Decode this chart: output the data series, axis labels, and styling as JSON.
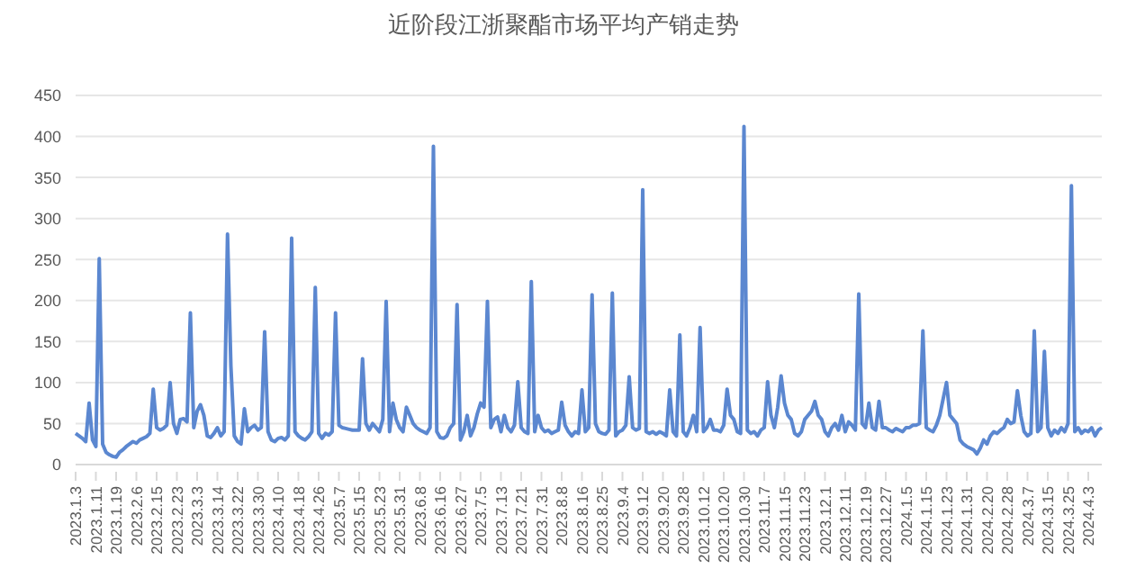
{
  "chart_data": {
    "type": "line",
    "title": "近阶段江浙聚酯市场平均产销走势",
    "categories": [
      "2023.1.3",
      null,
      null,
      null,
      null,
      null,
      "2023.1.11",
      null,
      null,
      null,
      null,
      null,
      "2023.1.19",
      null,
      null,
      null,
      null,
      null,
      "2023.2.6",
      null,
      null,
      null,
      null,
      null,
      "2023.2.15",
      null,
      null,
      null,
      null,
      null,
      "2023.2.23",
      null,
      null,
      null,
      null,
      null,
      "2023.3.3",
      null,
      null,
      null,
      null,
      null,
      "2023.3.14",
      null,
      null,
      null,
      null,
      null,
      "2023.3.22",
      null,
      null,
      null,
      null,
      null,
      "2023.3.30",
      null,
      null,
      null,
      null,
      null,
      "2023.4.10",
      null,
      null,
      null,
      null,
      null,
      "2023.4.18",
      null,
      null,
      null,
      null,
      null,
      "2023.4.26",
      null,
      null,
      null,
      null,
      null,
      "2023.5.7",
      null,
      null,
      null,
      null,
      null,
      "2023.5.15",
      null,
      null,
      null,
      null,
      null,
      "2023.5.23",
      null,
      null,
      null,
      null,
      null,
      "2023.5.31",
      null,
      null,
      null,
      null,
      null,
      "2023.6.8",
      null,
      null,
      null,
      null,
      null,
      "2023.6.16",
      null,
      null,
      null,
      null,
      null,
      "2023.6.27",
      null,
      null,
      null,
      null,
      null,
      "2023.7.5",
      null,
      null,
      null,
      null,
      null,
      "2023.7.13",
      null,
      null,
      null,
      null,
      null,
      "2023.7.21",
      null,
      null,
      null,
      null,
      null,
      "2023.7.31",
      null,
      null,
      null,
      null,
      null,
      "2023.8.8",
      null,
      null,
      null,
      null,
      null,
      "2023.8.16",
      null,
      null,
      null,
      null,
      null,
      "2023.8.25",
      null,
      null,
      null,
      null,
      null,
      "2023.9.4",
      null,
      null,
      null,
      null,
      null,
      "2023.9.12",
      null,
      null,
      null,
      null,
      null,
      "2023.9.20",
      null,
      null,
      null,
      null,
      null,
      "2023.9.28",
      null,
      null,
      null,
      null,
      null,
      "2023.10.12",
      null,
      null,
      null,
      null,
      null,
      "2023.10.20",
      null,
      null,
      null,
      null,
      null,
      "2023.10.30",
      null,
      null,
      null,
      null,
      null,
      "2023.11.7",
      null,
      null,
      null,
      null,
      null,
      "2023.11.15",
      null,
      null,
      null,
      null,
      null,
      "2023.11.23",
      null,
      null,
      null,
      null,
      null,
      "2023.12.1",
      null,
      null,
      null,
      null,
      null,
      "2023.12.11",
      null,
      null,
      null,
      null,
      null,
      "2023.12.19",
      null,
      null,
      null,
      null,
      null,
      "2023.12.27",
      null,
      null,
      null,
      null,
      null,
      "2024.1.5",
      null,
      null,
      null,
      null,
      null,
      "2024.1.15",
      null,
      null,
      null,
      null,
      null,
      "2024.1.23",
      null,
      null,
      null,
      null,
      null,
      "2024.1.31",
      null,
      null,
      null,
      null,
      null,
      "2024.2.20",
      null,
      null,
      null,
      null,
      null,
      "2024.2.28",
      null,
      null,
      null,
      null,
      null,
      "2024.3.7",
      null,
      null,
      null,
      null,
      null,
      "2024.3.15",
      null,
      null,
      null,
      null,
      null,
      "2024.3.25",
      null,
      null,
      null,
      null,
      null,
      "2024.4.3",
      null,
      null,
      null,
      null
    ],
    "values": [
      38,
      35,
      32,
      28,
      75,
      30,
      22,
      251,
      25,
      15,
      12,
      10,
      9,
      15,
      18,
      22,
      25,
      28,
      26,
      30,
      32,
      34,
      38,
      92,
      45,
      42,
      44,
      48,
      100,
      50,
      38,
      55,
      56,
      52,
      185,
      45,
      65,
      73,
      60,
      35,
      33,
      38,
      45,
      35,
      40,
      281,
      120,
      35,
      28,
      25,
      68,
      40,
      45,
      48,
      42,
      45,
      162,
      40,
      30,
      28,
      32,
      33,
      30,
      35,
      276,
      40,
      35,
      32,
      30,
      34,
      40,
      216,
      38,
      32,
      38,
      36,
      40,
      185,
      48,
      45,
      44,
      43,
      42,
      42,
      42,
      129,
      50,
      42,
      50,
      45,
      40,
      55,
      199,
      40,
      75,
      55,
      45,
      40,
      70,
      60,
      50,
      45,
      42,
      40,
      38,
      45,
      388,
      40,
      33,
      32,
      35,
      45,
      50,
      195,
      30,
      40,
      60,
      35,
      45,
      62,
      75,
      70,
      199,
      45,
      55,
      58,
      40,
      60,
      45,
      40,
      48,
      101,
      45,
      40,
      38,
      223,
      40,
      60,
      45,
      40,
      42,
      38,
      40,
      42,
      76,
      48,
      40,
      35,
      40,
      38,
      91,
      40,
      45,
      207,
      50,
      40,
      38,
      37,
      42,
      209,
      35,
      40,
      42,
      48,
      107,
      45,
      42,
      44,
      335,
      40,
      38,
      40,
      37,
      40,
      38,
      35,
      91,
      40,
      35,
      158,
      40,
      35,
      45,
      60,
      40,
      167,
      40,
      45,
      55,
      42,
      42,
      40,
      48,
      92,
      60,
      55,
      40,
      38,
      412,
      42,
      38,
      40,
      35,
      42,
      45,
      101,
      60,
      45,
      70,
      108,
      75,
      60,
      55,
      38,
      35,
      40,
      55,
      60,
      65,
      77,
      60,
      55,
      40,
      35,
      45,
      50,
      42,
      60,
      40,
      52,
      48,
      42,
      208,
      50,
      45,
      75,
      45,
      42,
      77,
      45,
      45,
      42,
      40,
      44,
      42,
      40,
      45,
      45,
      48,
      48,
      50,
      163,
      45,
      42,
      40,
      48,
      60,
      80,
      100,
      60,
      55,
      50,
      30,
      25,
      22,
      20,
      18,
      13,
      20,
      30,
      25,
      35,
      40,
      38,
      42,
      45,
      55,
      50,
      52,
      90,
      60,
      40,
      35,
      38,
      163,
      40,
      45,
      138,
      45,
      35,
      42,
      38,
      45,
      40,
      50,
      340,
      40,
      45,
      38,
      42,
      40,
      45,
      35,
      42,
      45
    ],
    "color": "#5b87d0",
    "ylim": [
      0,
      450
    ],
    "yticks": [
      0,
      50,
      100,
      150,
      200,
      250,
      300,
      350,
      400,
      450
    ],
    "grid": "y"
  }
}
